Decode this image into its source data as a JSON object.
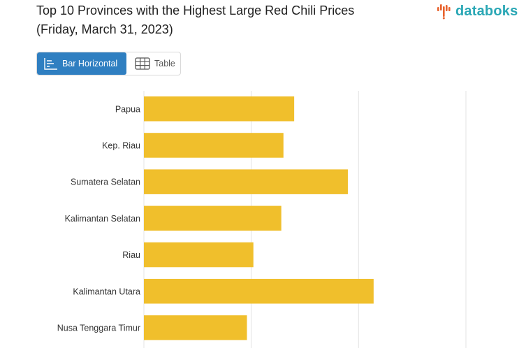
{
  "header": {
    "title_line1": "Top 10 Provinces with the Highest Large Red Chili Prices",
    "title_line2": "(Friday, March 31, 2023)",
    "logo_text": "databoks"
  },
  "tabs": [
    {
      "label": "Bar Horizontal",
      "icon": "bar-chart-icon",
      "active": true
    },
    {
      "label": "Table",
      "icon": "table-icon",
      "active": false
    }
  ],
  "colors": {
    "bar": "#f0bf2c",
    "accent": "#2f7fc1",
    "logo": "#2aa7b5",
    "logo_dots": "#e8622c"
  },
  "chart_data": {
    "type": "bar",
    "orientation": "horizontal",
    "title": "Top 10 Provinces with the Highest Large Red Chili Prices (Friday, March 31, 2023)",
    "categories": [
      "Papua",
      "Kep. Riau",
      "Sumatera Selatan",
      "Kalimantan Selatan",
      "Riau",
      "Kalimantan Utara",
      "Nusa Tenggara Timur"
    ],
    "values": [
      70000,
      65000,
      95000,
      64000,
      51000,
      107000,
      48000
    ],
    "xlim": [
      0,
      150000
    ],
    "gridlines": [
      0,
      50000,
      100000,
      150000
    ],
    "grid": true,
    "legend": false
  }
}
